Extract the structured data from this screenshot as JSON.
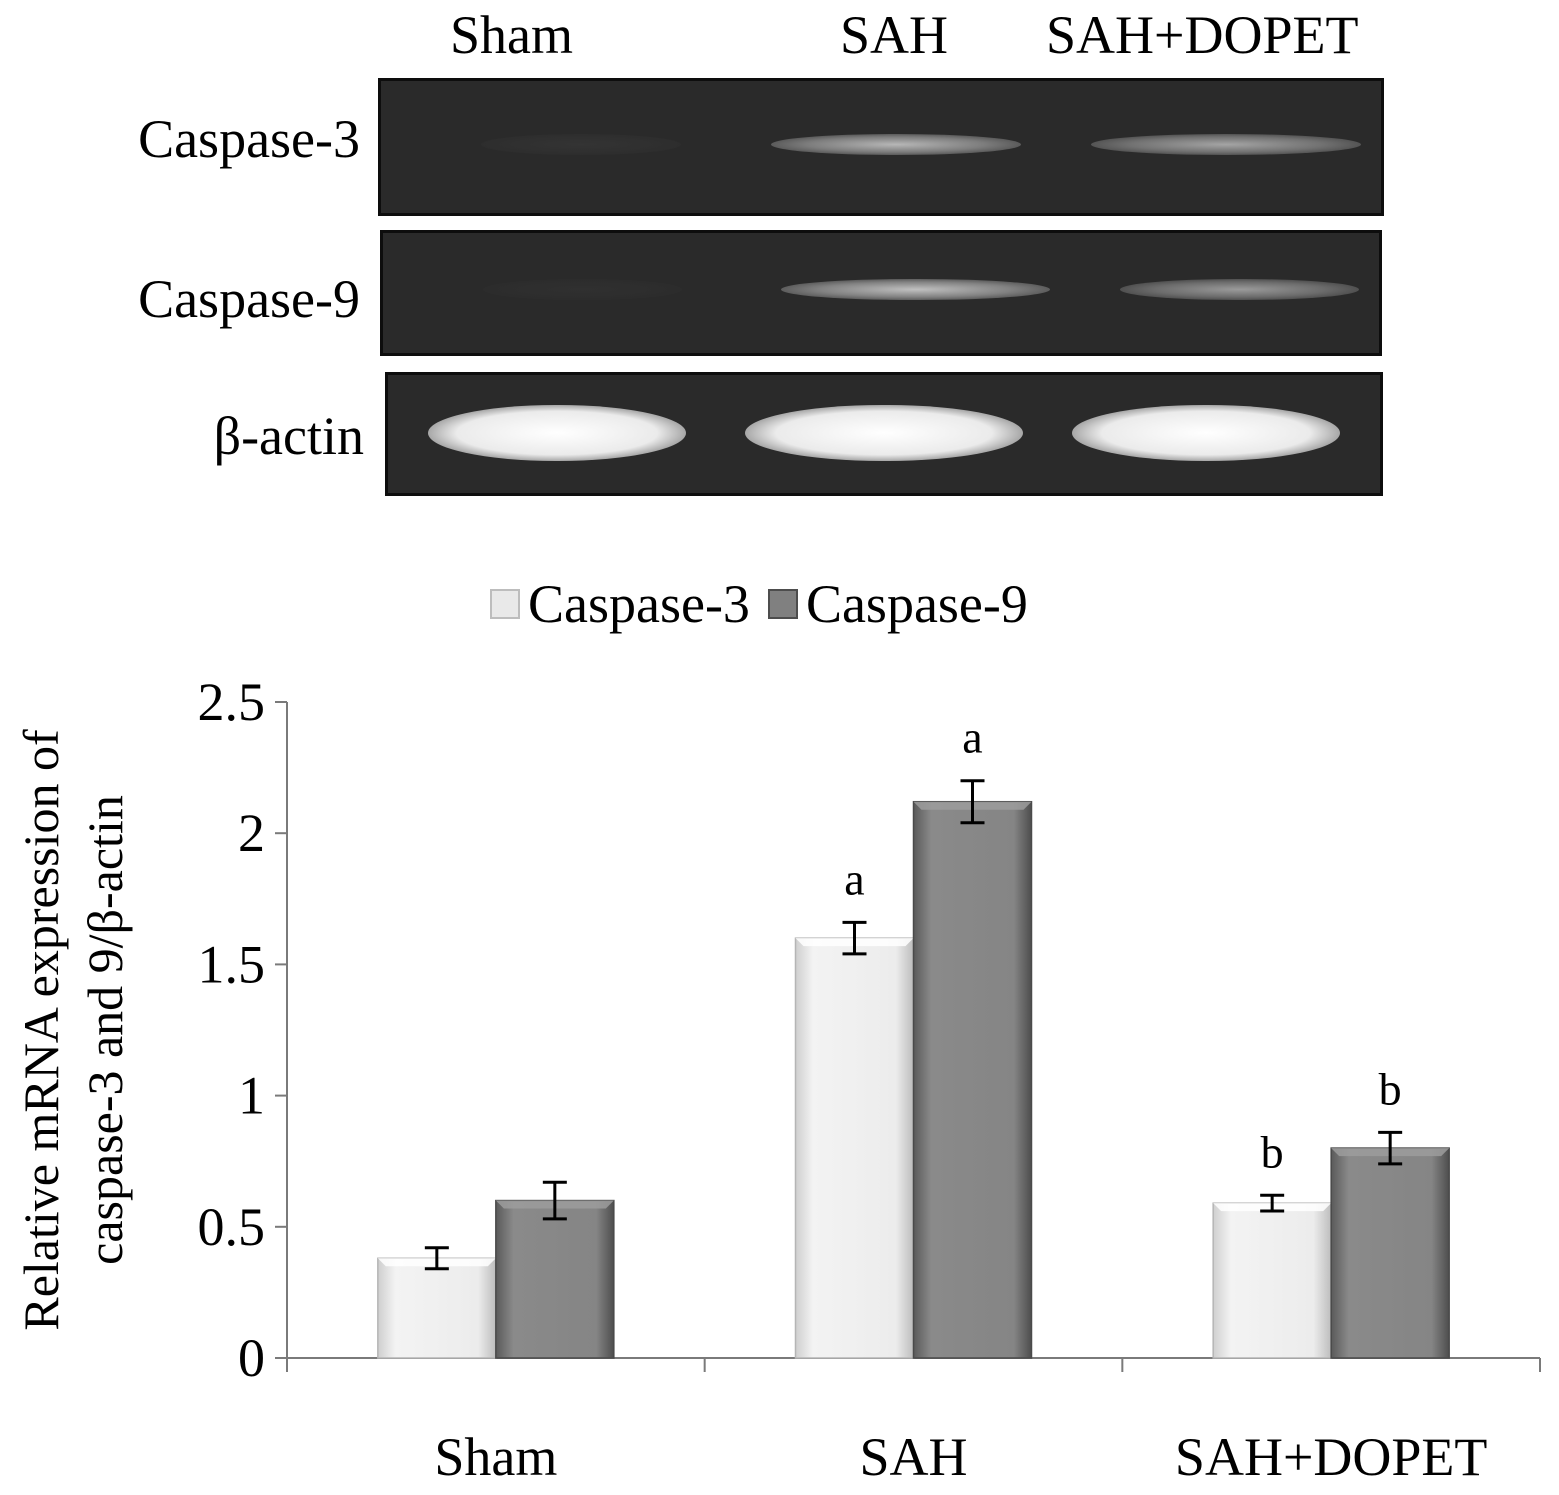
{
  "gel": {
    "lanes": [
      "Sham",
      "SAH",
      "SAH+DOPET"
    ],
    "rows": [
      {
        "label": "Caspase-3",
        "band_intensity": [
          0.05,
          0.75,
          0.65
        ]
      },
      {
        "label": "Caspase-9",
        "band_intensity": [
          0.03,
          0.8,
          0.6
        ]
      },
      {
        "label": "β-actin",
        "band_intensity": [
          1.0,
          1.0,
          1.0
        ]
      }
    ]
  },
  "chart_data": {
    "type": "bar",
    "categories": [
      "Sham",
      "SAH",
      "SAH+DOPET"
    ],
    "series": [
      {
        "name": "Caspase-3",
        "color": "#e4e4e4",
        "values": [
          0.38,
          1.6,
          0.59
        ],
        "errors": [
          0.04,
          0.06,
          0.03
        ],
        "annotations": [
          "",
          "a",
          "b"
        ]
      },
      {
        "name": "Caspase-9",
        "color": "#7f7f7f",
        "values": [
          0.6,
          2.12,
          0.8
        ],
        "errors": [
          0.07,
          0.08,
          0.06
        ],
        "annotations": [
          "",
          "a",
          "b"
        ]
      }
    ],
    "ylabel_line1": "Relative mRNA expression of",
    "ylabel_line2": "caspase-3 and 9/β-actin",
    "xlabel": "",
    "ylim": [
      0,
      2.5
    ],
    "yticks": [
      0,
      0.5,
      1,
      1.5,
      2,
      2.5
    ],
    "ytick_labels": [
      "0",
      "0.5",
      "1",
      "1.5",
      "2",
      "2.5"
    ],
    "grid": false,
    "legend_position": "top-center"
  }
}
